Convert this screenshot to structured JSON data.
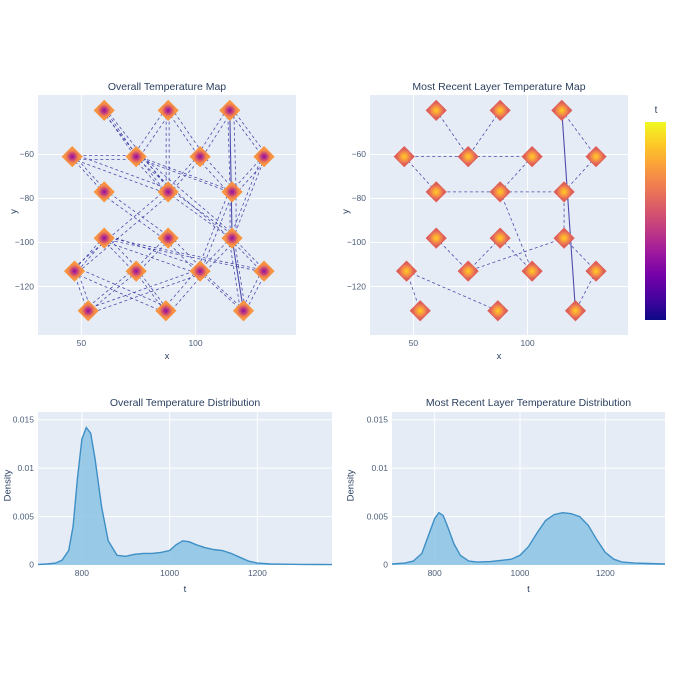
{
  "style": {
    "plot_bg": "#e5ecf6",
    "grid": "#ffffff",
    "title_text": "#2a3f5f",
    "tick_text": "#4c5e79",
    "edge_line": "#34319f",
    "density_fill": "#85c1e2",
    "density_line": "#3d8fc6",
    "marker_mid": [
      "#8f0da4",
      "#c5407b",
      "#ef7e4f",
      "#f89540"
    ],
    "marker_hot": [
      "#fcce25",
      "#fba238",
      "#ec7a54",
      "#de5f56"
    ],
    "colorbar_stops": [
      "#f0f921",
      "#fdca26",
      "#fb9f3a",
      "#ed7953",
      "#d8576b",
      "#bd3786",
      "#9c179e",
      "#7201a8",
      "#46039f",
      "#0d0887"
    ]
  },
  "colorbar": {
    "label": "t",
    "colormap": "plasma"
  },
  "chart_data": [
    {
      "id": "overall-map",
      "type": "scatter",
      "title": "Overall Temperature Map",
      "xlabel": "x",
      "ylabel": "y",
      "x_range": [
        31,
        144
      ],
      "y_range": [
        -142,
        -33
      ],
      "x_ticks": [
        50,
        100
      ],
      "x_tick_labels": [
        "50",
        "100"
      ],
      "y_ticks": [
        -60,
        -80,
        -100,
        -120
      ],
      "y_tick_labels": [
        "−60",
        "−80",
        "−100",
        "−120"
      ],
      "clusters": [
        [
          60,
          -40
        ],
        [
          88,
          -40
        ],
        [
          115,
          -40
        ],
        [
          46,
          -61
        ],
        [
          74,
          -61
        ],
        [
          102,
          -61
        ],
        [
          130,
          -61
        ],
        [
          60,
          -77
        ],
        [
          88,
          -77
        ],
        [
          116,
          -77
        ],
        [
          60,
          -98
        ],
        [
          88,
          -98
        ],
        [
          116,
          -98
        ],
        [
          47,
          -113
        ],
        [
          74,
          -113
        ],
        [
          102,
          -113
        ],
        [
          130,
          -113
        ],
        [
          53,
          -131
        ],
        [
          87,
          -131
        ],
        [
          121,
          -131
        ]
      ],
      "edges": [
        [
          0,
          4
        ],
        [
          0,
          8
        ],
        [
          1,
          4
        ],
        [
          1,
          5
        ],
        [
          1,
          8
        ],
        [
          2,
          5
        ],
        [
          2,
          6
        ],
        [
          2,
          9
        ],
        [
          3,
          4
        ],
        [
          3,
          7
        ],
        [
          3,
          8
        ],
        [
          4,
          8
        ],
        [
          4,
          9
        ],
        [
          5,
          8
        ],
        [
          5,
          9
        ],
        [
          6,
          9
        ],
        [
          6,
          12
        ],
        [
          7,
          11
        ],
        [
          8,
          12
        ],
        [
          9,
          12
        ],
        [
          9,
          15
        ],
        [
          10,
          13
        ],
        [
          10,
          14
        ],
        [
          10,
          15
        ],
        [
          10,
          16
        ],
        [
          11,
          14
        ],
        [
          11,
          15
        ],
        [
          12,
          15
        ],
        [
          12,
          16
        ],
        [
          12,
          19
        ],
        [
          13,
          17
        ],
        [
          13,
          18
        ],
        [
          14,
          17
        ],
        [
          14,
          18
        ],
        [
          15,
          17
        ],
        [
          15,
          18
        ],
        [
          15,
          19
        ],
        [
          16,
          19
        ],
        [
          8,
          13
        ],
        [
          4,
          12
        ]
      ],
      "solid_edges": [
        [
          2,
          12
        ],
        [
          12,
          19
        ]
      ],
      "edge_bundle": 2,
      "marker_gradient": "gmid"
    },
    {
      "id": "recent-map",
      "type": "scatter",
      "title": "Most Recent Layer Temperature Map",
      "xlabel": "x",
      "ylabel": "y",
      "x_range": [
        31,
        144
      ],
      "y_range": [
        -142,
        -33
      ],
      "x_ticks": [
        50,
        100
      ],
      "x_tick_labels": [
        "50",
        "100"
      ],
      "y_ticks": [
        -60,
        -80,
        -100,
        -120
      ],
      "y_tick_labels": [
        "−60",
        "−80",
        "−100",
        "−120"
      ],
      "clusters": [
        [
          60,
          -40
        ],
        [
          88,
          -40
        ],
        [
          115,
          -40
        ],
        [
          46,
          -61
        ],
        [
          74,
          -61
        ],
        [
          102,
          -61
        ],
        [
          130,
          -61
        ],
        [
          60,
          -77
        ],
        [
          88,
          -77
        ],
        [
          116,
          -77
        ],
        [
          60,
          -98
        ],
        [
          88,
          -98
        ],
        [
          116,
          -98
        ],
        [
          47,
          -113
        ],
        [
          74,
          -113
        ],
        [
          102,
          -113
        ],
        [
          130,
          -113
        ],
        [
          53,
          -131
        ],
        [
          87,
          -131
        ],
        [
          121,
          -131
        ]
      ],
      "edges": [
        [
          0,
          4
        ],
        [
          1,
          4
        ],
        [
          2,
          6
        ],
        [
          3,
          5
        ],
        [
          3,
          7
        ],
        [
          5,
          8
        ],
        [
          6,
          9
        ],
        [
          7,
          9
        ],
        [
          9,
          12
        ],
        [
          10,
          14
        ],
        [
          11,
          14
        ],
        [
          11,
          15
        ],
        [
          12,
          14
        ],
        [
          12,
          16
        ],
        [
          13,
          17
        ],
        [
          13,
          18
        ],
        [
          8,
          15
        ],
        [
          16,
          19
        ]
      ],
      "solid_edges": [
        [
          2,
          19
        ]
      ],
      "edge_bundle": 1,
      "marker_gradient": "ghot"
    },
    {
      "id": "overall-density",
      "type": "area",
      "title": "Overall Temperature Distribution",
      "xlabel": "t",
      "ylabel": "Density",
      "x_range": [
        700,
        1370
      ],
      "y_range": [
        0,
        0.0158
      ],
      "x_ticks": [
        800,
        1000,
        1200
      ],
      "x_tick_labels": [
        "800",
        "1000",
        "1200"
      ],
      "y_ticks": [
        0,
        0.005,
        0.01,
        0.015
      ],
      "y_tick_labels": [
        "0",
        "0.005",
        "0.01",
        "0.015"
      ],
      "x": [
        700,
        720,
        740,
        755,
        770,
        780,
        790,
        800,
        810,
        820,
        830,
        845,
        860,
        880,
        900,
        920,
        940,
        960,
        980,
        1000,
        1015,
        1030,
        1045,
        1060,
        1080,
        1100,
        1120,
        1140,
        1160,
        1180,
        1200,
        1230,
        1260,
        1300,
        1340,
        1370
      ],
      "y": [
        5e-05,
        0.0001,
        0.0002,
        0.0005,
        0.0015,
        0.004,
        0.009,
        0.013,
        0.0142,
        0.0136,
        0.011,
        0.006,
        0.0025,
        0.001,
        0.0009,
        0.0011,
        0.0012,
        0.0012,
        0.0013,
        0.0015,
        0.0021,
        0.0025,
        0.0024,
        0.0021,
        0.0018,
        0.0016,
        0.0015,
        0.0012,
        0.0008,
        0.0004,
        0.0002,
        0.0001,
        8e-05,
        6e-05,
        5e-05,
        4e-05
      ]
    },
    {
      "id": "recent-density",
      "type": "area",
      "title": "Most Recent Layer Temperature Distribution",
      "xlabel": "t",
      "ylabel": "Density",
      "x_range": [
        700,
        1340
      ],
      "y_range": [
        0,
        0.0158
      ],
      "x_ticks": [
        800,
        1000,
        1200
      ],
      "x_tick_labels": [
        "800",
        "1000",
        "1200"
      ],
      "y_ticks": [
        0,
        0.005,
        0.01,
        0.015
      ],
      "y_tick_labels": [
        "0",
        "0.005",
        "0.01",
        "0.015"
      ],
      "x": [
        700,
        730,
        750,
        770,
        785,
        800,
        810,
        820,
        830,
        845,
        860,
        880,
        900,
        930,
        960,
        980,
        1000,
        1020,
        1040,
        1060,
        1080,
        1100,
        1120,
        1140,
        1160,
        1180,
        1200,
        1220,
        1240,
        1270,
        1300,
        1340
      ],
      "y": [
        0.0001,
        0.0002,
        0.0004,
        0.0012,
        0.003,
        0.0048,
        0.0054,
        0.0051,
        0.004,
        0.0022,
        0.001,
        0.0004,
        0.0003,
        0.00035,
        0.0005,
        0.0006,
        0.001,
        0.0019,
        0.0033,
        0.0046,
        0.0052,
        0.0054,
        0.0053,
        0.005,
        0.0041,
        0.0026,
        0.0013,
        0.0006,
        0.0003,
        0.0002,
        0.00015,
        0.0001
      ]
    }
  ]
}
